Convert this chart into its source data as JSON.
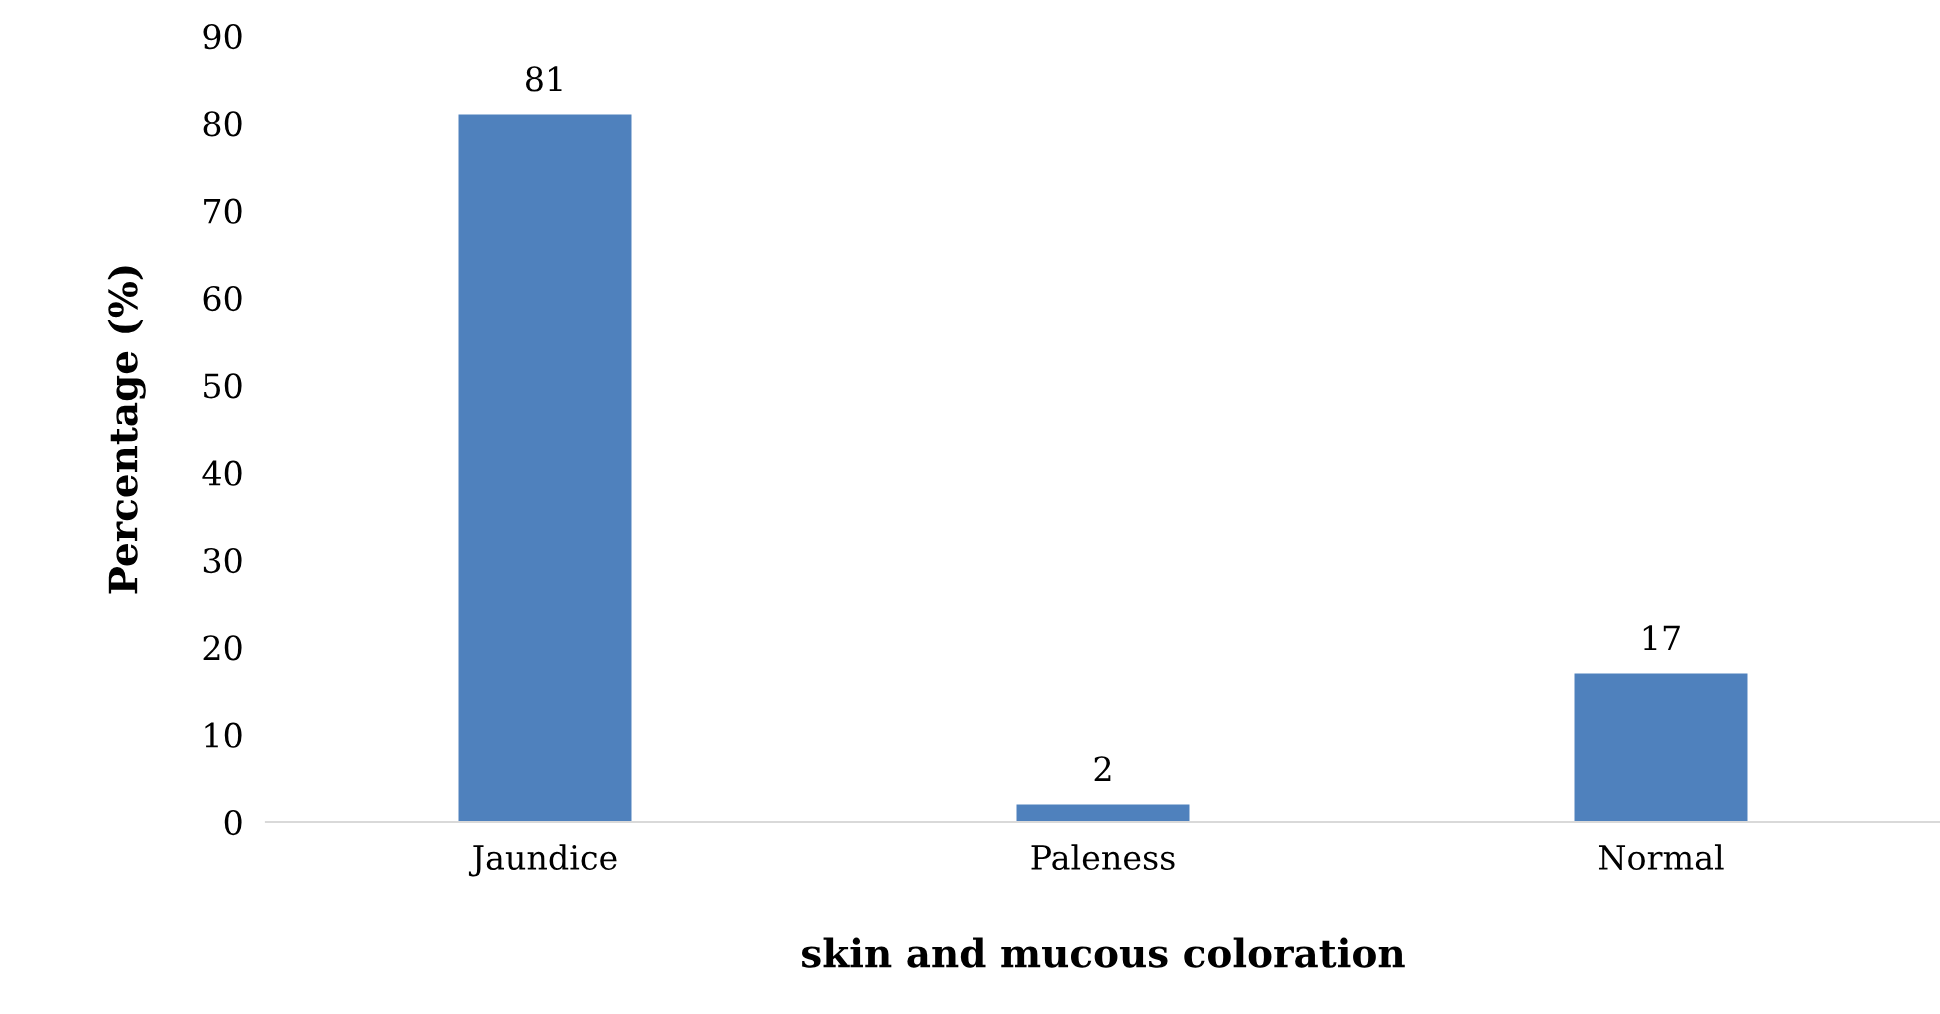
{
  "chart_data": {
    "type": "bar",
    "xlabel": "skin and mucous coloration",
    "ylabel": "Percentage (%)",
    "categories": [
      "Jaundice",
      "Paleness",
      "Normal"
    ],
    "values": [
      81,
      2,
      17
    ],
    "color": "#4f81bd",
    "ylim": [
      0,
      90
    ],
    "yticks": [
      0,
      10,
      20,
      30,
      40,
      50,
      60,
      70,
      80,
      90
    ],
    "grid": false,
    "data_labels": true
  }
}
